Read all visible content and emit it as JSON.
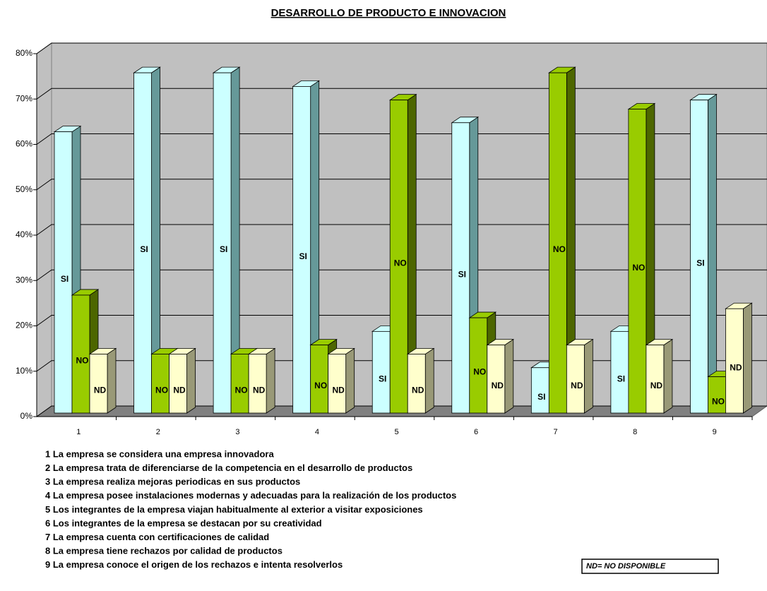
{
  "chart_data": {
    "type": "bar3d",
    "title": "DESARROLLO DE PRODUCTO E INNOVACION",
    "categories": [
      "1",
      "2",
      "3",
      "4",
      "5",
      "6",
      "7",
      "8",
      "9"
    ],
    "series": [
      {
        "name": "SI",
        "color": "#ccffff",
        "side": "#669999",
        "values": [
          62,
          75,
          75,
          72,
          18,
          64,
          10,
          18,
          69
        ]
      },
      {
        "name": "NO",
        "color": "#99cc00",
        "side": "#4d6600",
        "values": [
          26,
          13,
          13,
          15,
          69,
          21,
          75,
          67,
          8
        ]
      },
      {
        "name": "ND",
        "color": "#ffffcc",
        "side": "#999977",
        "values": [
          13,
          13,
          13,
          13,
          13,
          15,
          15,
          15,
          23
        ]
      }
    ],
    "ylim": [
      0,
      80
    ],
    "yticks": [
      {
        "value": 0,
        "label": "0%"
      },
      {
        "value": 10,
        "label": "10%"
      },
      {
        "value": 20,
        "label": "20%"
      },
      {
        "value": 30,
        "label": "30%"
      },
      {
        "value": 40,
        "label": "40%"
      },
      {
        "value": 50,
        "label": "50%"
      },
      {
        "value": 60,
        "label": "60%"
      },
      {
        "value": 70,
        "label": "70%"
      },
      {
        "value": 80,
        "label": "80%"
      }
    ],
    "grid": true,
    "notes": [
      "1 La empresa se considera una empresa innovadora",
      "2 La empresa trata de diferenciarse de la competencia en el desarrollo de productos",
      "3 La empresa realiza mejoras periodicas en sus productos",
      "4 La empresa posee instalaciones modernas y adecuadas para la realización de los productos",
      "5 Los integrantes de la empresa viajan habitualmente al exterior a visitar exposiciones",
      "6 Los integrantes de la empresa se destacan por su creatividad",
      "7 La empresa cuenta con certificaciones de calidad",
      "8 La empresa tiene rechazos por calidad de productos",
      "9 La empresa conoce el origen de los rechazos e intenta resolverlos"
    ],
    "annotation": "ND= NO DISPONIBLE"
  }
}
